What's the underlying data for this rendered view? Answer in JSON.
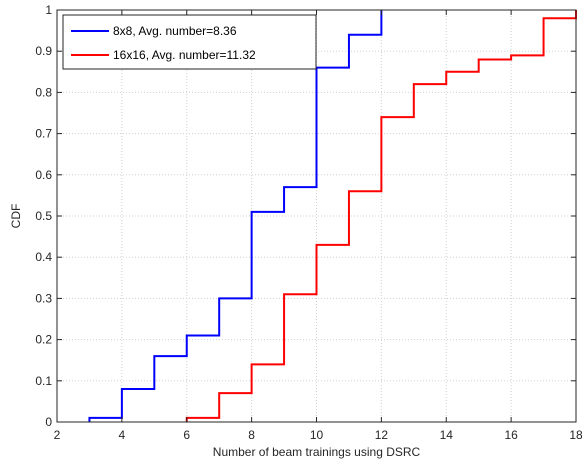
{
  "chart_data": {
    "type": "line",
    "step": true,
    "xlabel": "Number of beam trainings using DSRC",
    "ylabel": "CDF",
    "xlim": [
      2,
      18
    ],
    "ylim": [
      0,
      1
    ],
    "xticks": [
      2,
      4,
      6,
      8,
      10,
      12,
      14,
      16,
      18
    ],
    "yticks": [
      0,
      0.1,
      0.2,
      0.3,
      0.4,
      0.5,
      0.6,
      0.7,
      0.8,
      0.9,
      1
    ],
    "grid": true,
    "legend_position": "top-left",
    "series": [
      {
        "name": "8x8, Avg. number=8.36",
        "color": "#0000ff",
        "x": [
          3,
          4,
          5,
          6,
          7,
          8,
          9,
          10,
          11,
          12
        ],
        "y": [
          0.01,
          0.08,
          0.16,
          0.21,
          0.3,
          0.51,
          0.57,
          0.86,
          0.94,
          1.0
        ]
      },
      {
        "name": "16x16, Avg. number=11.32",
        "color": "#ff0000",
        "x": [
          6,
          7,
          8,
          9,
          10,
          11,
          12,
          13,
          14,
          15,
          16,
          17,
          18
        ],
        "y": [
          0.01,
          0.07,
          0.14,
          0.31,
          0.43,
          0.56,
          0.74,
          0.82,
          0.85,
          0.88,
          0.89,
          0.98,
          1.0
        ]
      }
    ]
  }
}
